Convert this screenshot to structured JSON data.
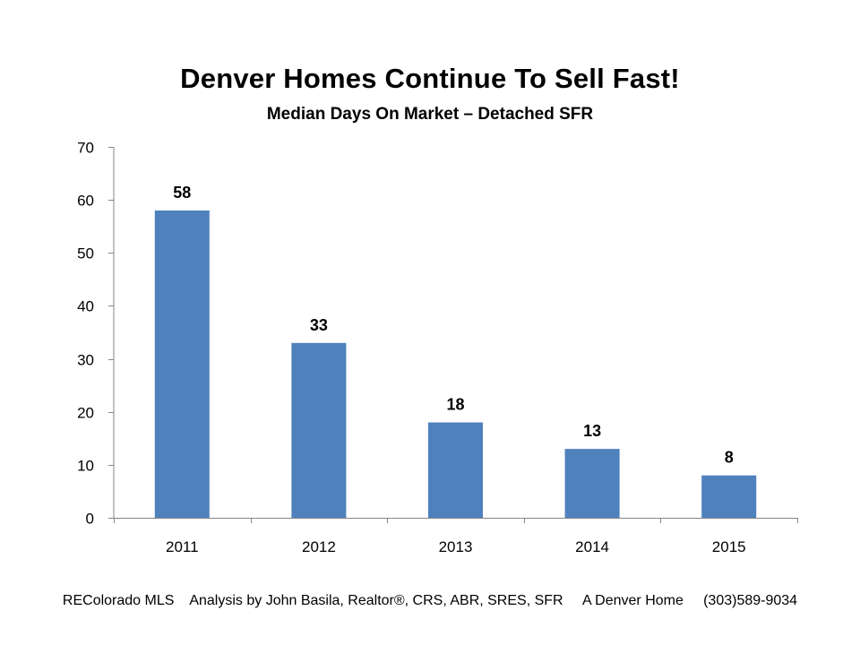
{
  "chart_data": {
    "type": "bar",
    "title": "Denver Homes Continue To Sell Fast!",
    "subtitle": "Median Days On Market – Detached SFR",
    "categories": [
      "2011",
      "2012",
      "2013",
      "2014",
      "2015"
    ],
    "values": [
      58,
      33,
      18,
      13,
      8
    ],
    "data_labels": [
      "58",
      "33",
      "18",
      "13",
      "8"
    ],
    "ylim": [
      0,
      70
    ],
    "yticks": [
      0,
      10,
      20,
      30,
      40,
      50,
      60,
      70
    ],
    "xlabel": "",
    "ylabel": "",
    "grid": false,
    "legend": "none",
    "bar_color": "#4F81BD"
  },
  "footer": {
    "text": "REColorado MLS    Analysis by John Basila, Realtor®, CRS, ABR, SRES, SFR     A Denver Home     (303)589-9034"
  }
}
